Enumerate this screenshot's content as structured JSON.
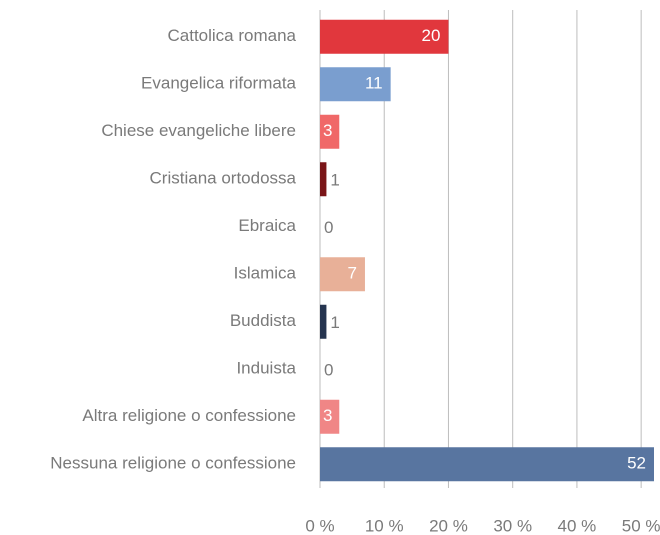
{
  "chart_data": {
    "type": "barh",
    "categories": [
      "Cattolica romana",
      "Evangelica riformata",
      "Chiese evangeliche libere",
      "Cristiana ortodossa",
      "Ebraica",
      "Islamica",
      "Buddista",
      "Induista",
      "Altra religione o confessione",
      "Nessuna religione o confessione"
    ],
    "values": [
      20,
      11,
      3,
      1,
      0,
      7,
      1,
      0,
      3,
      52
    ],
    "colors": [
      "#e1373d",
      "#7a9ecf",
      "#f06868",
      "#7a1518",
      "#999999",
      "#e8b098",
      "#25344f",
      "#999999",
      "#f08686",
      "#5875a0"
    ],
    "xlim": [
      0,
      52
    ],
    "xticks": [
      {
        "value": 0,
        "label": "0 %"
      },
      {
        "value": 10,
        "label": "10 %"
      },
      {
        "value": 20,
        "label": "20 %"
      },
      {
        "value": 30,
        "label": "30 %"
      },
      {
        "value": 40,
        "label": "40 %"
      },
      {
        "value": 50,
        "label": "50 %"
      }
    ],
    "grid": true
  }
}
